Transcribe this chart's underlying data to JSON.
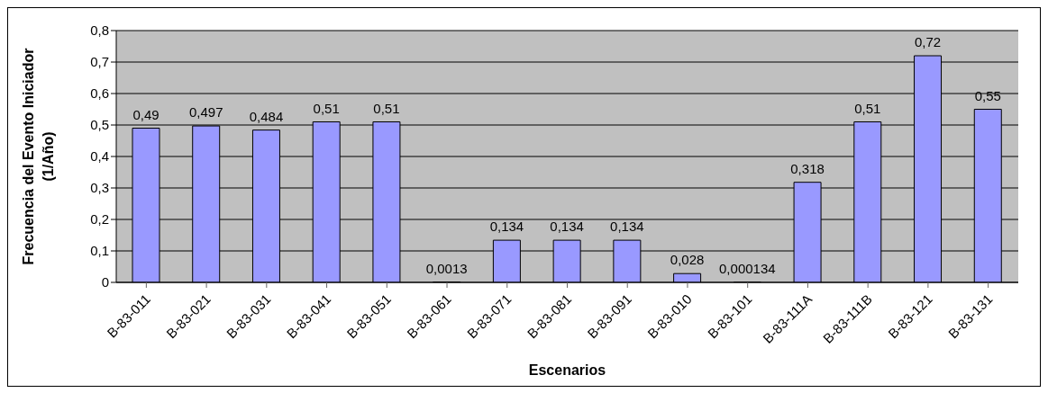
{
  "chart_data": {
    "type": "bar",
    "xlabel": "Escenarios",
    "ylabel": "Frecuencia del Evento Iniciador\n(1/Año)",
    "categories": [
      "B-83-011",
      "B-83-021",
      "B-83-031",
      "B-83-041",
      "B-83-051",
      "B-83-061",
      "B-83-071",
      "B-83-081",
      "B-83-091",
      "B-83-010",
      "B-83-101",
      "B-83-111A",
      "B-83-111B",
      "B-83-121",
      "B-83-131"
    ],
    "values": [
      0.49,
      0.497,
      0.484,
      0.51,
      0.51,
      0.0013,
      0.134,
      0.134,
      0.134,
      0.028,
      0.000134,
      0.318,
      0.51,
      0.72,
      0.55
    ],
    "value_labels": [
      "0,49",
      "0,497",
      "0,484",
      "0,51",
      "0,51",
      "0,0013",
      "0,134",
      "0,134",
      "0,134",
      "0,028",
      "0,000134",
      "0,318",
      "0,51",
      "0,72",
      "0,55"
    ],
    "color": "#9999ff",
    "ylim": [
      0,
      0.8
    ],
    "yticks": [
      {
        "value": 0,
        "label": "0"
      },
      {
        "value": 0.1,
        "label": "0,1"
      },
      {
        "value": 0.2,
        "label": "0,2"
      },
      {
        "value": 0.3,
        "label": "0,3"
      },
      {
        "value": 0.4,
        "label": "0,4"
      },
      {
        "value": 0.5,
        "label": "0,5"
      },
      {
        "value": 0.6,
        "label": "0,6"
      },
      {
        "value": 0.7,
        "label": "0,7"
      },
      {
        "value": 0.8,
        "label": "0,8"
      }
    ],
    "grid": "y"
  }
}
